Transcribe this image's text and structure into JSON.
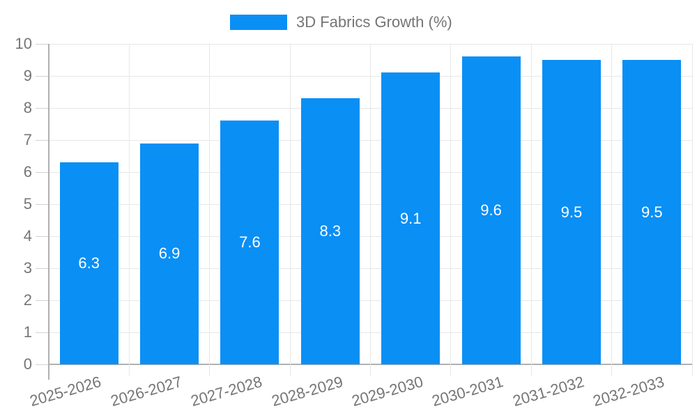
{
  "chart_data": {
    "type": "bar",
    "title": "3D Fabrics Growth (%)",
    "categories": [
      "2025-2026",
      "2026-2027",
      "2027-2028",
      "2028-2029",
      "2029-2030",
      "2030-2031",
      "2031-2032",
      "2032-2033"
    ],
    "values": [
      6.3,
      6.9,
      7.6,
      8.3,
      9.1,
      9.6,
      9.5,
      9.5
    ],
    "xlabel": "",
    "ylabel": "",
    "ylim": [
      0,
      10
    ],
    "y_ticks": [
      0,
      1,
      2,
      3,
      4,
      5,
      6,
      7,
      8,
      9,
      10
    ],
    "grid": true,
    "legend_position": "top-center",
    "value_labels_inside_bars": true,
    "colors": {
      "bar": "#0a8ff5",
      "bar_value_text": "#ffffff",
      "axis_text": "#757575",
      "gridline": "#e7e7e7",
      "axis_line": "#b0b0b0",
      "tick": "#d2d2d2"
    }
  }
}
